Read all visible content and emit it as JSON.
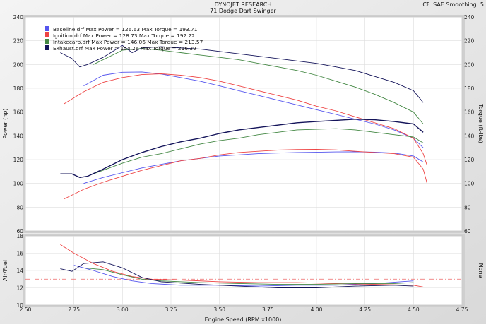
{
  "header": {
    "title": "DYNOJET RESEARCH",
    "subtitle": "71 Dodge Dart Swinger",
    "info": "CF: SAE  Smoothing: 5"
  },
  "chart_data": [
    {
      "type": "line",
      "panel": "power-torque",
      "ylabel_left": "Power (hp)",
      "ylabel_right": "Torque (ft-lbs)",
      "xlim": [
        2.5,
        4.75
      ],
      "ylim": [
        60,
        240
      ],
      "yticks": [
        60,
        80,
        100,
        120,
        140,
        160,
        180,
        200,
        220,
        240
      ],
      "grid": true,
      "legend_position": "top-left",
      "legend": [
        {
          "text": "Baseline.drf Max Power = 126.63  Max Torque = 193.71",
          "color": "#5555ee"
        },
        {
          "text": "Ignition.drf Max Power = 128.73  Max Torque = 192.22",
          "color": "#ee4444"
        },
        {
          "text": "Intakecarb.drf Max Power = 146.06  Max Torque = 213.57",
          "color": "#448844"
        },
        {
          "text": "Exhaust.drf Max Power = 154.26  Max Torque = 216.39",
          "color": "#14145a"
        }
      ],
      "series": [
        {
          "run": "Baseline",
          "measure": "power",
          "color": "#5555ee",
          "x": [
            2.8,
            2.9,
            3.0,
            3.1,
            3.2,
            3.3,
            3.4,
            3.5,
            3.6,
            3.7,
            3.8,
            3.9,
            4.0,
            4.1,
            4.2,
            4.3,
            4.4,
            4.5,
            4.55
          ],
          "y": [
            100,
            105,
            109,
            113,
            116,
            119,
            121,
            123,
            124,
            125,
            125.5,
            126,
            126.2,
            126.5,
            126.6,
            126.3,
            125.5,
            123,
            118
          ]
        },
        {
          "run": "Baseline",
          "measure": "torque",
          "color": "#5555ee",
          "x": [
            2.8,
            2.9,
            3.0,
            3.1,
            3.2,
            3.3,
            3.4,
            3.5,
            3.6,
            3.7,
            3.8,
            3.9,
            4.0,
            4.1,
            4.2,
            4.3,
            4.4,
            4.5,
            4.55
          ],
          "y": [
            182,
            191,
            193.5,
            193.7,
            192,
            189,
            186,
            182,
            178,
            174,
            170,
            166,
            162,
            158,
            154,
            150,
            145,
            138,
            130
          ]
        },
        {
          "run": "Ignition",
          "measure": "power",
          "color": "#ee4444",
          "x": [
            2.7,
            2.8,
            2.9,
            3.0,
            3.1,
            3.2,
            3.3,
            3.4,
            3.5,
            3.6,
            3.7,
            3.8,
            3.9,
            4.0,
            4.1,
            4.2,
            4.3,
            4.4,
            4.5,
            4.55,
            4.57
          ],
          "y": [
            87,
            95,
            101,
            106,
            111,
            115,
            119,
            121,
            124,
            126,
            127,
            128,
            128.5,
            128.7,
            128.2,
            127,
            126,
            125,
            122,
            112,
            100
          ]
        },
        {
          "run": "Ignition",
          "measure": "torque",
          "color": "#ee4444",
          "x": [
            2.7,
            2.8,
            2.9,
            3.0,
            3.1,
            3.2,
            3.3,
            3.4,
            3.5,
            3.6,
            3.7,
            3.8,
            3.9,
            4.0,
            4.1,
            4.2,
            4.3,
            4.4,
            4.5,
            4.55,
            4.57
          ],
          "y": [
            167,
            177,
            185,
            189,
            191.5,
            192.2,
            191,
            189,
            186,
            182,
            178,
            174,
            170,
            165,
            161,
            156,
            151,
            146,
            138,
            125,
            115
          ]
        },
        {
          "run": "Intakecarb",
          "measure": "power",
          "color": "#448844",
          "x": [
            2.85,
            3.0,
            3.1,
            3.2,
            3.3,
            3.4,
            3.5,
            3.6,
            3.7,
            3.8,
            3.9,
            4.0,
            4.1,
            4.2,
            4.3,
            4.4,
            4.5,
            4.55
          ],
          "y": [
            108,
            117,
            122,
            125,
            129,
            133,
            136,
            138,
            141,
            143,
            145,
            145.5,
            146,
            145,
            143,
            141,
            139,
            134
          ]
        },
        {
          "run": "Intakecarb",
          "measure": "torque",
          "color": "#448844",
          "x": [
            2.85,
            2.95,
            3.0,
            3.1,
            3.2,
            3.3,
            3.4,
            3.5,
            3.6,
            3.7,
            3.8,
            3.9,
            4.0,
            4.1,
            4.2,
            4.3,
            4.4,
            4.5,
            4.55
          ],
          "y": [
            200,
            208,
            212,
            213.5,
            212,
            210,
            208,
            206,
            204,
            201,
            198,
            195,
            191,
            186,
            181,
            175,
            168,
            160,
            150
          ]
        },
        {
          "run": "Exhaust",
          "measure": "power",
          "color": "#14145a",
          "x": [
            2.68,
            2.74,
            2.78,
            2.82,
            2.9,
            3.0,
            3.1,
            3.2,
            3.3,
            3.4,
            3.5,
            3.6,
            3.7,
            3.8,
            3.9,
            4.0,
            4.1,
            4.2,
            4.3,
            4.4,
            4.5,
            4.55
          ],
          "y": [
            108,
            108,
            105,
            106,
            112,
            120,
            126,
            131,
            135,
            138,
            142,
            145,
            147,
            149,
            151,
            152,
            153,
            154,
            153.5,
            152,
            150,
            143
          ]
        },
        {
          "run": "Exhaust",
          "measure": "torque",
          "color": "#14145a",
          "x": [
            2.68,
            2.74,
            2.78,
            2.82,
            2.9,
            2.96,
            3.0,
            3.05,
            3.1,
            3.2,
            3.3,
            3.4,
            3.5,
            3.6,
            3.7,
            3.8,
            3.9,
            4.0,
            4.1,
            4.2,
            4.3,
            4.4,
            4.5,
            4.55
          ],
          "y": [
            210,
            205,
            198,
            200,
            206,
            212,
            216,
            210,
            214,
            215,
            214,
            213,
            211,
            209,
            207,
            205,
            203,
            201,
            198,
            195,
            190,
            185,
            178,
            168
          ]
        }
      ]
    },
    {
      "type": "line",
      "panel": "air-fuel",
      "ylabel_left": "Air/Fuel",
      "ylabel_right": "None",
      "xlabel": "Engine Speed (RPM x1000)",
      "xlim": [
        2.5,
        4.75
      ],
      "xticks": [
        2.5,
        2.75,
        3.0,
        3.25,
        3.5,
        3.75,
        4.0,
        4.25,
        4.5,
        4.75
      ],
      "ylim": [
        10,
        18
      ],
      "yticks": [
        10,
        12,
        14,
        16,
        18
      ],
      "grid": true,
      "reference_line": {
        "y": 13.0,
        "color": "#ee6666"
      },
      "series": [
        {
          "run": "Baseline",
          "color": "#5555ee",
          "x": [
            2.75,
            2.85,
            2.95,
            3.05,
            3.15,
            3.3,
            3.5,
            3.7,
            3.9,
            4.1,
            4.3,
            4.5
          ],
          "y": [
            14.6,
            14.0,
            13.3,
            12.8,
            12.5,
            12.3,
            12.3,
            12.2,
            12.3,
            12.3,
            12.5,
            12.8
          ]
        },
        {
          "run": "Ignition",
          "color": "#ee4444",
          "x": [
            2.68,
            2.75,
            2.85,
            2.95,
            3.05,
            3.15,
            3.3,
            3.5,
            3.7,
            3.9,
            4.1,
            4.3,
            4.5,
            4.55
          ],
          "y": [
            17.0,
            16.0,
            14.8,
            13.9,
            13.3,
            13.0,
            12.9,
            12.7,
            12.6,
            12.6,
            12.5,
            12.4,
            12.3,
            12.1
          ]
        },
        {
          "run": "Intakecarb",
          "color": "#448844",
          "x": [
            2.8,
            2.9,
            3.0,
            3.1,
            3.2,
            3.4,
            3.6,
            3.8,
            4.0,
            4.2,
            4.4,
            4.5
          ],
          "y": [
            14.3,
            14.1,
            13.5,
            13.0,
            12.8,
            12.6,
            12.5,
            12.4,
            12.4,
            12.5,
            12.5,
            12.6
          ]
        },
        {
          "run": "Exhaust",
          "color": "#14145a",
          "x": [
            2.68,
            2.74,
            2.8,
            2.9,
            3.0,
            3.1,
            3.2,
            3.4,
            3.6,
            3.8,
            4.0,
            4.2,
            4.4,
            4.5
          ],
          "y": [
            14.2,
            13.9,
            14.8,
            15.0,
            14.3,
            13.2,
            12.7,
            12.4,
            12.2,
            12.0,
            12.0,
            12.2,
            12.3,
            12.2
          ]
        }
      ]
    }
  ]
}
